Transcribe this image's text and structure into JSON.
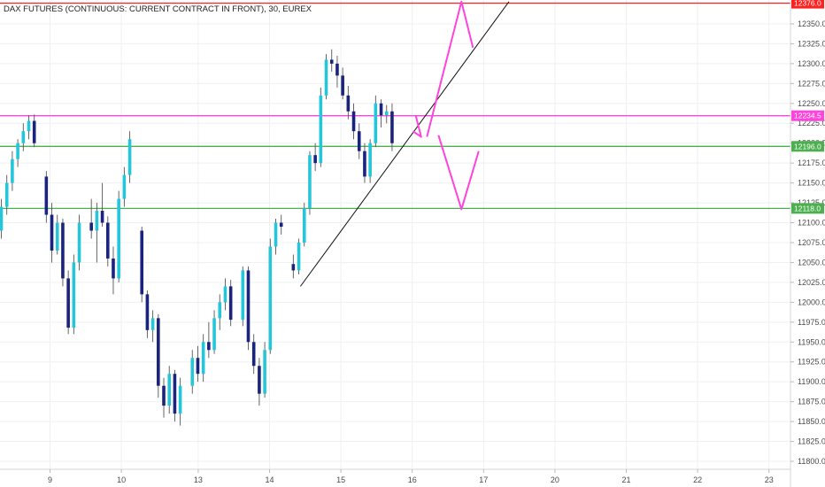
{
  "chart_data": {
    "type": "candlestick",
    "title": "DAX FUTURES (CONTINUOUS: CURRENT CONTRACT IN FRONT), 30, EUREX",
    "ylim": [
      11790,
      12380
    ],
    "y_ticks": [
      12350,
      12325,
      12300,
      12275,
      12250,
      12225,
      12200,
      12175,
      12150,
      12125,
      12100,
      12075,
      12050,
      12025,
      12000,
      11975,
      11950,
      11925,
      11900,
      11875,
      11850,
      11825,
      11800
    ],
    "y_tick_labels": [
      "12350.0",
      "12325.0",
      "12300.0",
      "12275.0",
      "12250.0",
      "12225.0",
      "12200.0",
      "12175.0",
      "12150.0",
      "12125.0",
      "12100.0",
      "12075.0",
      "12050.0",
      "12025.0",
      "12000.0",
      "11975.0",
      "11950.0",
      "11925.0",
      "11900.0",
      "11875.0",
      "11850.0",
      "11825.0",
      "11800.0"
    ],
    "x_tick_labels": [
      "9",
      "10",
      "13",
      "14",
      "15",
      "16",
      "17",
      "20",
      "21",
      "22",
      "23"
    ],
    "x_tick_bar_index": [
      0,
      13,
      27,
      40,
      53,
      66,
      79,
      92,
      105,
      118,
      131
    ],
    "colors": {
      "up": "#26c6da",
      "down": "#1a237e",
      "wick": "#555555"
    },
    "levels": [
      {
        "label": "12376.0",
        "value": 12376,
        "color": "#ff2020"
      },
      {
        "label": "12234.5",
        "value": 12234.5,
        "color": "#ff44dd"
      },
      {
        "label": "12196.0",
        "value": 12196,
        "color": "#4caf50"
      },
      {
        "label": "12118.0",
        "value": 12118,
        "color": "#4caf50"
      }
    ],
    "candles": [
      {
        "o": 12090,
        "h": 12130,
        "l": 12080,
        "c": 12120
      },
      {
        "o": 12120,
        "h": 12160,
        "l": 12110,
        "c": 12150
      },
      {
        "o": 12150,
        "h": 12190,
        "l": 12140,
        "c": 12180
      },
      {
        "o": 12180,
        "h": 12205,
        "l": 12170,
        "c": 12200
      },
      {
        "o": 12200,
        "h": 12225,
        "l": 12190,
        "c": 12215
      },
      {
        "o": 12215,
        "h": 12235,
        "l": 12205,
        "c": 12228
      },
      {
        "o": 12228,
        "h": 12236,
        "l": 12195,
        "c": 12200
      },
      {
        "o": 12158,
        "h": 12165,
        "l": 12100,
        "c": 12110
      },
      {
        "o": 12110,
        "h": 12125,
        "l": 12050,
        "c": 12065
      },
      {
        "o": 12065,
        "h": 12110,
        "l": 12060,
        "c": 12100
      },
      {
        "o": 12100,
        "h": 12105,
        "l": 12020,
        "c": 12030
      },
      {
        "o": 12030,
        "h": 12040,
        "l": 11960,
        "c": 11968
      },
      {
        "o": 11968,
        "h": 12060,
        "l": 11960,
        "c": 12050
      },
      {
        "o": 12050,
        "h": 12110,
        "l": 12040,
        "c": 12100
      },
      {
        "o": 12100,
        "h": 12130,
        "l": 12080,
        "c": 12090
      },
      {
        "o": 12090,
        "h": 12125,
        "l": 12050,
        "c": 12115
      },
      {
        "o": 12115,
        "h": 12150,
        "l": 12095,
        "c": 12100
      },
      {
        "o": 12100,
        "h": 12108,
        "l": 12045,
        "c": 12055
      },
      {
        "o": 12055,
        "h": 12070,
        "l": 12010,
        "c": 12030
      },
      {
        "o": 12030,
        "h": 12140,
        "l": 12025,
        "c": 12130
      },
      {
        "o": 12130,
        "h": 12170,
        "l": 12120,
        "c": 12160
      },
      {
        "o": 12160,
        "h": 12215,
        "l": 12150,
        "c": 12205
      },
      {
        "o": 12090,
        "h": 12095,
        "l": 12000,
        "c": 12010
      },
      {
        "o": 12010,
        "h": 12015,
        "l": 11955,
        "c": 11965
      },
      {
        "o": 11965,
        "h": 11990,
        "l": 11950,
        "c": 11980
      },
      {
        "o": 11980,
        "h": 11985,
        "l": 11880,
        "c": 11895
      },
      {
        "o": 11895,
        "h": 11905,
        "l": 11855,
        "c": 11870
      },
      {
        "o": 11870,
        "h": 11920,
        "l": 11860,
        "c": 11910
      },
      {
        "o": 11910,
        "h": 11915,
        "l": 11850,
        "c": 11860
      },
      {
        "o": 11860,
        "h": 11905,
        "l": 11845,
        "c": 11895
      },
      {
        "o": 11895,
        "h": 11940,
        "l": 11885,
        "c": 11930
      },
      {
        "o": 11930,
        "h": 11945,
        "l": 11900,
        "c": 11910
      },
      {
        "o": 11910,
        "h": 11960,
        "l": 11900,
        "c": 11950
      },
      {
        "o": 11950,
        "h": 11975,
        "l": 11930,
        "c": 11940
      },
      {
        "o": 11940,
        "h": 11990,
        "l": 11935,
        "c": 11980
      },
      {
        "o": 11980,
        "h": 12010,
        "l": 11965,
        "c": 12000
      },
      {
        "o": 12000,
        "h": 12030,
        "l": 11990,
        "c": 12020
      },
      {
        "o": 12020,
        "h": 12028,
        "l": 11970,
        "c": 11978
      },
      {
        "o": 11978,
        "h": 12045,
        "l": 11970,
        "c": 12040
      },
      {
        "o": 12040,
        "h": 12045,
        "l": 11940,
        "c": 11950
      },
      {
        "o": 11950,
        "h": 11960,
        "l": 11910,
        "c": 11920
      },
      {
        "o": 11920,
        "h": 11930,
        "l": 11870,
        "c": 11885
      },
      {
        "o": 11885,
        "h": 11950,
        "l": 11880,
        "c": 11940
      },
      {
        "o": 11940,
        "h": 12080,
        "l": 11935,
        "c": 12070
      },
      {
        "o": 12070,
        "h": 12105,
        "l": 12060,
        "c": 12100
      },
      {
        "o": 12100,
        "h": 12110,
        "l": 12085,
        "c": 12095
      },
      {
        "o": 12048,
        "h": 12060,
        "l": 12030,
        "c": 12040
      },
      {
        "o": 12040,
        "h": 12080,
        "l": 12035,
        "c": 12075
      },
      {
        "o": 12075,
        "h": 12125,
        "l": 12070,
        "c": 12118
      },
      {
        "o": 12118,
        "h": 12190,
        "l": 12110,
        "c": 12185
      },
      {
        "o": 12185,
        "h": 12200,
        "l": 12165,
        "c": 12175
      },
      {
        "o": 12175,
        "h": 12270,
        "l": 12170,
        "c": 12260
      },
      {
        "o": 12260,
        "h": 12312,
        "l": 12255,
        "c": 12305
      },
      {
        "o": 12305,
        "h": 12318,
        "l": 12290,
        "c": 12300
      },
      {
        "o": 12300,
        "h": 12310,
        "l": 12270,
        "c": 12285
      },
      {
        "o": 12285,
        "h": 12295,
        "l": 12255,
        "c": 12260
      },
      {
        "o": 12260,
        "h": 12272,
        "l": 12230,
        "c": 12240
      },
      {
        "o": 12240,
        "h": 12250,
        "l": 12205,
        "c": 12215
      },
      {
        "o": 12215,
        "h": 12225,
        "l": 12180,
        "c": 12190
      },
      {
        "o": 12190,
        "h": 12200,
        "l": 12150,
        "c": 12158
      },
      {
        "o": 12158,
        "h": 12205,
        "l": 12150,
        "c": 12200
      },
      {
        "o": 12200,
        "h": 12260,
        "l": 12195,
        "c": 12250
      },
      {
        "o": 12250,
        "h": 12255,
        "l": 12220,
        "c": 12235
      },
      {
        "o": 12235,
        "h": 12248,
        "l": 12225,
        "c": 12240
      },
      {
        "o": 12240,
        "h": 12250,
        "l": 12190,
        "c": 12200
      }
    ],
    "trendline": {
      "from": {
        "bar": 48,
        "value": 12020
      },
      "to": {
        "bar": 86,
        "value": 12378
      }
    },
    "arrows": [
      {
        "points": [
          [
            69,
            12235
          ],
          [
            70,
            12208
          ],
          [
            68.5,
            12215
          ]
        ],
        "color": "#ff44dd"
      },
      {
        "points": [
          [
            71,
            12208
          ],
          [
            77,
            12378
          ],
          [
            79,
            12320
          ]
        ],
        "color": "#ff44dd"
      },
      {
        "points": [
          [
            73,
            12210
          ],
          [
            77,
            12117
          ],
          [
            80,
            12190
          ]
        ],
        "color": "#ff44dd"
      }
    ]
  }
}
